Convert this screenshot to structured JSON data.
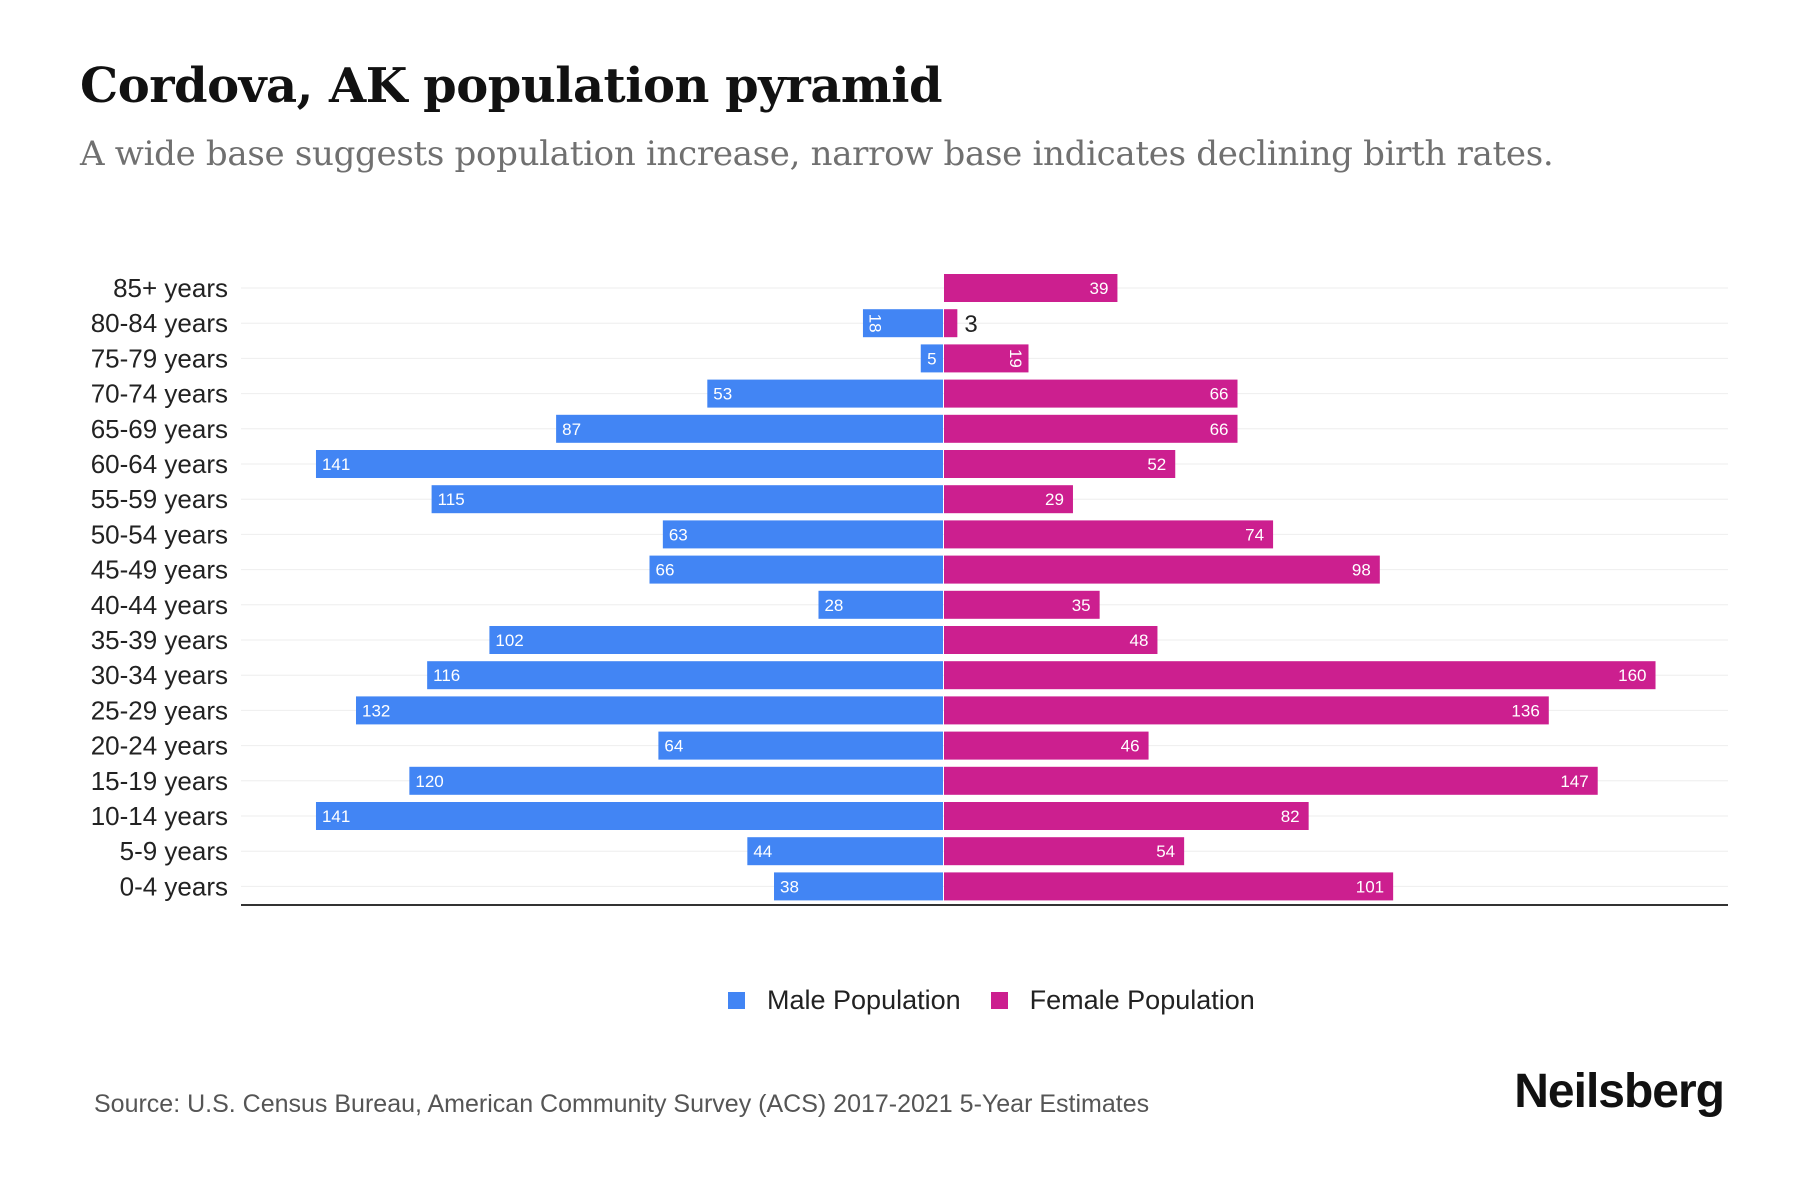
{
  "header": {
    "title": "Cordova, AK population pyramid",
    "subtitle": "A wide base suggests population increase, narrow base indicates declining birth rates."
  },
  "legend": {
    "male_label": "Male Population",
    "female_label": "Female Population"
  },
  "footer": {
    "source": "Source: U.S. Census Bureau, American Community Survey (ACS) 2017-2021 5-Year Estimates",
    "brand": "Neilsberg"
  },
  "colors": {
    "male": "#4285F4",
    "female": "#CC1F8F",
    "grid": "#eeeeee",
    "axis": "#333333"
  },
  "chart_data": {
    "type": "bar",
    "orientation": "horizontal-diverging",
    "title": "Cordova, AK population pyramid",
    "subtitle": "A wide base suggests population increase, narrow base indicates declining birth rates.",
    "xlabel": "",
    "ylabel": "",
    "categories": [
      "85+ years",
      "80-84 years",
      "75-79 years",
      "70-74 years",
      "65-69 years",
      "60-64 years",
      "55-59 years",
      "50-54 years",
      "45-49 years",
      "40-44 years",
      "35-39 years",
      "30-34 years",
      "25-29 years",
      "20-24 years",
      "15-19 years",
      "10-14 years",
      "5-9 years",
      "0-4 years"
    ],
    "series": [
      {
        "name": "Male Population",
        "color": "#4285F4",
        "side": "left",
        "values": [
          0,
          18,
          5,
          53,
          87,
          141,
          115,
          63,
          66,
          28,
          102,
          116,
          132,
          64,
          120,
          141,
          44,
          38
        ]
      },
      {
        "name": "Female Population",
        "color": "#CC1F8F",
        "side": "right",
        "values": [
          39,
          3,
          19,
          66,
          66,
          52,
          29,
          74,
          98,
          35,
          48,
          160,
          136,
          46,
          147,
          82,
          54,
          101
        ]
      }
    ],
    "xlim": [
      -141,
      170
    ],
    "grid": true,
    "legend_position": "bottom-center",
    "data_labels": true
  }
}
